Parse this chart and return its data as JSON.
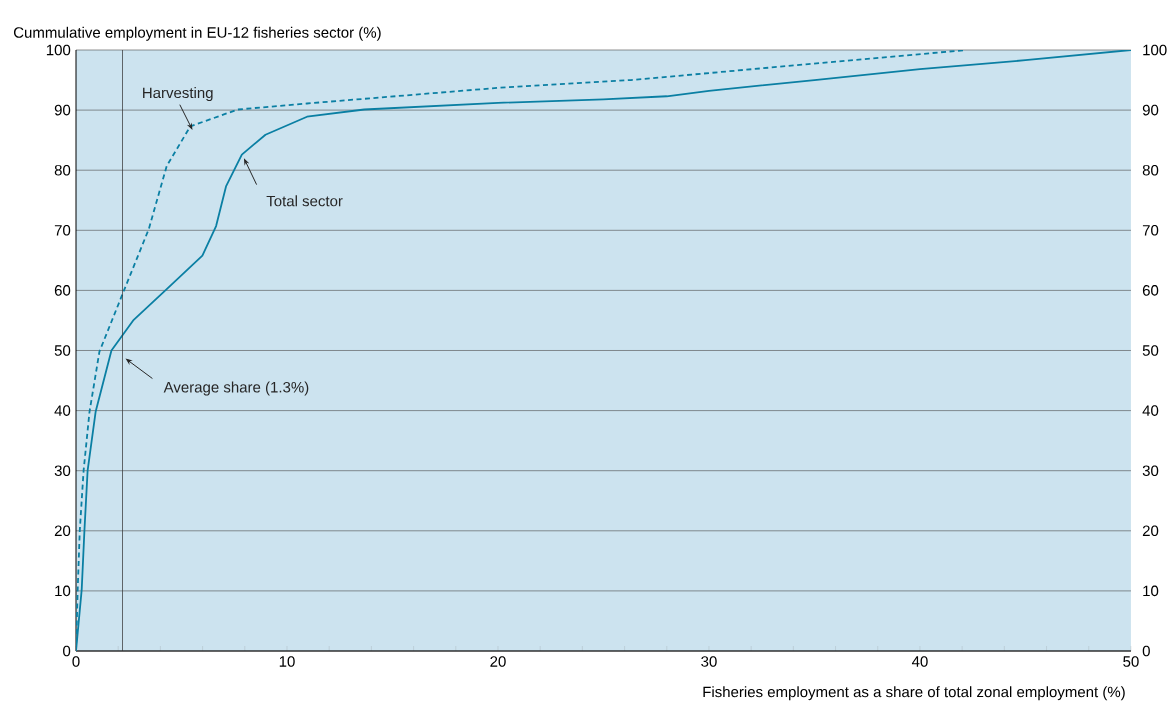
{
  "chart_data": {
    "type": "line",
    "xlabel": "Fisheries employment as a share of total zonal employment (%)",
    "ylabel": "Cummulative employment in EU-12 fisheries sector (%)",
    "series": [
      {
        "name": "Total sector",
        "color": "#0a7fa3",
        "line_style": "solid",
        "x": [
          0,
          0.27,
          0.4,
          0.55,
          0.93,
          1.68,
          2.71,
          4.3,
          5.99,
          6.64,
          7.11,
          7.86,
          8.98,
          10.95,
          13.66,
          20,
          25,
          28,
          30,
          35,
          40,
          45,
          50
        ],
        "values": [
          0,
          10.2,
          20.1,
          30,
          39.8,
          50,
          55,
          60.2,
          65.8,
          70.7,
          77.3,
          82.6,
          85.9,
          88.9,
          90.1,
          91.2,
          91.8,
          92.3,
          93.2,
          95,
          96.8,
          98.3,
          100
        ]
      },
      {
        "name": "Harvesting",
        "color": "#0a7fa3",
        "line_style": "dashed",
        "x": [
          0,
          0.08,
          0.18,
          0.36,
          0.64,
          1.11,
          2.24,
          3.45,
          4.3,
          5.42,
          7.67,
          10.95,
          20,
          26.3,
          42.2
        ],
        "values": [
          0,
          10.2,
          20.1,
          30,
          39.8,
          49.8,
          59.7,
          70.2,
          80.7,
          87.3,
          90.1,
          91.1,
          93.7,
          95,
          100
        ]
      }
    ],
    "ref_lines": [
      {
        "axis": "x",
        "value": 2.2,
        "color": "#333333",
        "label": "Average share (1.3%)"
      }
    ],
    "xlim": [
      0,
      50
    ],
    "ylim": [
      0,
      100
    ],
    "y2lim": [
      0,
      100
    ],
    "xticks": [
      0,
      {
        "value": 2,
        "label": null
      },
      {
        "value": 4,
        "label": null
      },
      {
        "value": 6,
        "label": null
      },
      {
        "value": 8,
        "label": null
      },
      10,
      {
        "value": 12,
        "label": null
      },
      {
        "value": 14,
        "label": null
      },
      {
        "value": 16,
        "label": null
      },
      {
        "value": 18,
        "label": null
      },
      20,
      {
        "value": 22,
        "label": null
      },
      {
        "value": 24,
        "label": null
      },
      {
        "value": 26,
        "label": null
      },
      {
        "value": 28,
        "label": null
      },
      30,
      {
        "value": 32,
        "label": null
      },
      {
        "value": 34,
        "label": null
      },
      {
        "value": 36,
        "label": null
      },
      {
        "value": 38,
        "label": null
      },
      40,
      {
        "value": 42,
        "label": null
      },
      {
        "value": 44,
        "label": null
      },
      {
        "value": 46,
        "label": null
      },
      {
        "value": 48,
        "label": null
      },
      50
    ],
    "yticks": [
      0,
      10,
      20,
      30,
      40,
      50,
      60,
      70,
      80,
      90,
      100
    ],
    "y2ticks": [
      0,
      10,
      20,
      30,
      40,
      50,
      60,
      70,
      80,
      90,
      100
    ],
    "grid": "y",
    "legend": false,
    "marker": "none"
  }
}
